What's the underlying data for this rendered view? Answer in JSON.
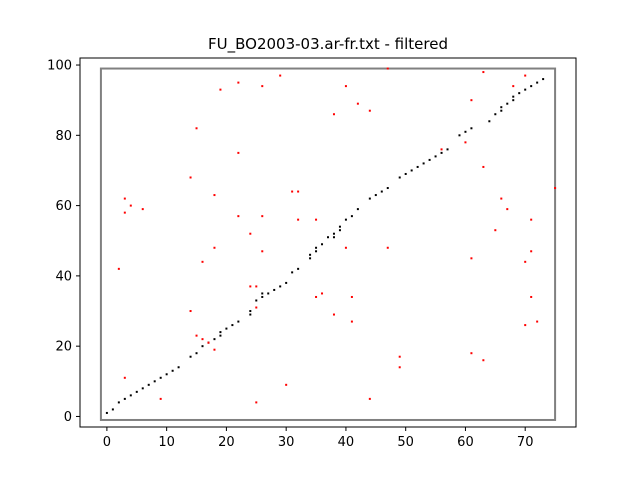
{
  "chart_data": {
    "type": "scatter",
    "title": "FU_BO2003-03.ar-fr.txt - filtered",
    "xlabel": "",
    "ylabel": "",
    "xlim": [
      -4.5,
      78.5
    ],
    "ylim": [
      -3,
      102
    ],
    "x_ticks": [
      0,
      10,
      20,
      30,
      40,
      50,
      60,
      70
    ],
    "y_ticks": [
      0,
      20,
      40,
      60,
      80,
      100
    ],
    "grid": false,
    "box": {
      "x0": -1,
      "x1": 75,
      "y0": -1,
      "y1": 99,
      "color": "#808080"
    },
    "series": [
      {
        "color": "#000000",
        "points": [
          [
            0,
            1
          ],
          [
            1,
            2
          ],
          [
            2,
            4
          ],
          [
            3,
            5
          ],
          [
            4,
            6
          ],
          [
            5,
            7
          ],
          [
            6,
            8
          ],
          [
            7,
            9
          ],
          [
            8,
            10
          ],
          [
            9,
            11
          ],
          [
            10,
            12
          ],
          [
            11,
            13
          ],
          [
            12,
            14
          ],
          [
            14,
            17
          ],
          [
            15,
            18
          ],
          [
            16,
            20
          ],
          [
            17,
            21
          ],
          [
            18,
            22
          ],
          [
            19,
            23
          ],
          [
            19,
            24
          ],
          [
            20,
            25
          ],
          [
            21,
            26
          ],
          [
            22,
            27
          ],
          [
            24,
            29
          ],
          [
            24,
            30
          ],
          [
            25,
            33
          ],
          [
            26,
            34
          ],
          [
            26,
            35
          ],
          [
            27,
            35
          ],
          [
            28,
            36
          ],
          [
            29,
            37
          ],
          [
            30,
            38
          ],
          [
            31,
            41
          ],
          [
            32,
            42
          ],
          [
            34,
            45
          ],
          [
            34,
            46
          ],
          [
            35,
            47
          ],
          [
            35,
            48
          ],
          [
            36,
            49
          ],
          [
            37,
            51
          ],
          [
            38,
            51
          ],
          [
            38,
            52
          ],
          [
            39,
            53
          ],
          [
            39,
            54
          ],
          [
            40,
            56
          ],
          [
            41,
            57
          ],
          [
            42,
            59
          ],
          [
            44,
            62
          ],
          [
            45,
            63
          ],
          [
            46,
            64
          ],
          [
            47,
            65
          ],
          [
            49,
            68
          ],
          [
            50,
            69
          ],
          [
            51,
            70
          ],
          [
            52,
            71
          ],
          [
            53,
            72
          ],
          [
            54,
            73
          ],
          [
            55,
            74
          ],
          [
            56,
            75
          ],
          [
            57,
            76
          ],
          [
            59,
            80
          ],
          [
            60,
            81
          ],
          [
            61,
            82
          ],
          [
            64,
            84
          ],
          [
            65,
            86
          ],
          [
            66,
            87
          ],
          [
            66,
            88
          ],
          [
            67,
            89
          ],
          [
            68,
            90
          ],
          [
            68,
            91
          ],
          [
            69,
            92
          ],
          [
            70,
            93
          ],
          [
            71,
            94
          ],
          [
            72,
            95
          ],
          [
            73,
            96
          ]
        ]
      },
      {
        "color": "#ff0000",
        "points": [
          [
            2,
            42
          ],
          [
            3,
            58
          ],
          [
            3,
            62
          ],
          [
            3,
            11
          ],
          [
            4,
            60
          ],
          [
            6,
            59
          ],
          [
            9,
            5
          ],
          [
            14,
            68
          ],
          [
            14,
            30
          ],
          [
            15,
            82
          ],
          [
            15,
            23
          ],
          [
            16,
            44
          ],
          [
            16,
            22
          ],
          [
            17,
            21
          ],
          [
            18,
            63
          ],
          [
            18,
            48
          ],
          [
            18,
            19
          ],
          [
            19,
            93
          ],
          [
            22,
            95
          ],
          [
            22,
            75
          ],
          [
            22,
            57
          ],
          [
            24,
            52
          ],
          [
            24,
            37
          ],
          [
            25,
            4
          ],
          [
            25,
            37
          ],
          [
            25,
            31
          ],
          [
            26,
            94
          ],
          [
            26,
            57
          ],
          [
            26,
            47
          ],
          [
            29,
            97
          ],
          [
            30,
            9
          ],
          [
            31,
            64
          ],
          [
            32,
            64
          ],
          [
            32,
            56
          ],
          [
            35,
            56
          ],
          [
            35,
            34
          ],
          [
            36,
            35
          ],
          [
            38,
            86
          ],
          [
            38,
            29
          ],
          [
            40,
            94
          ],
          [
            40,
            48
          ],
          [
            41,
            34
          ],
          [
            41,
            27
          ],
          [
            42,
            89
          ],
          [
            44,
            87
          ],
          [
            44,
            5
          ],
          [
            47,
            99
          ],
          [
            47,
            48
          ],
          [
            49,
            17
          ],
          [
            49,
            14
          ],
          [
            56,
            76
          ],
          [
            60,
            78
          ],
          [
            61,
            90
          ],
          [
            61,
            45
          ],
          [
            61,
            18
          ],
          [
            63,
            98
          ],
          [
            63,
            71
          ],
          [
            63,
            16
          ],
          [
            65,
            53
          ],
          [
            66,
            62
          ],
          [
            67,
            59
          ],
          [
            68,
            94
          ],
          [
            70,
            97
          ],
          [
            70,
            44
          ],
          [
            70,
            26
          ],
          [
            71,
            56
          ],
          [
            71,
            47
          ],
          [
            71,
            34
          ],
          [
            72,
            27
          ],
          [
            75,
            65
          ]
        ]
      }
    ]
  }
}
